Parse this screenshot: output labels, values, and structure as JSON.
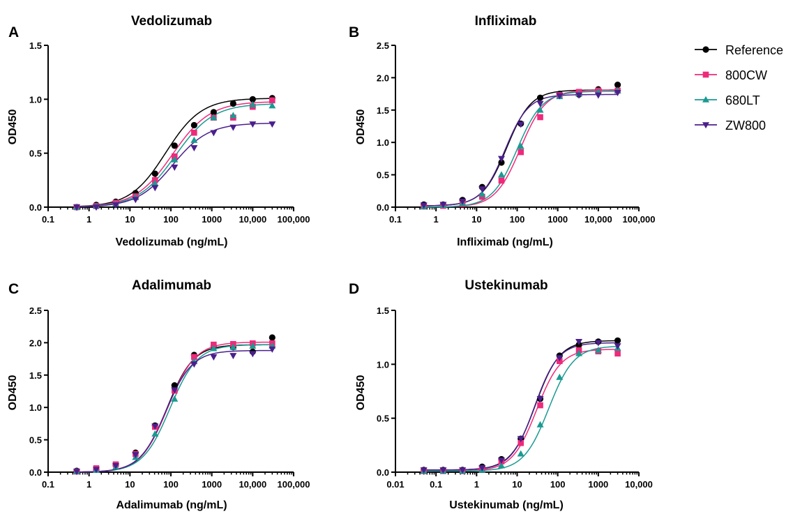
{
  "colors": {
    "Reference": "#000000",
    "800CW": "#ee2a7b",
    "680LT": "#1a9a92",
    "ZW800": "#4b1f8c"
  },
  "legend": {
    "placement": "right",
    "items": [
      {
        "name": "Reference",
        "marker": "circle"
      },
      {
        "name": "800CW",
        "marker": "square"
      },
      {
        "name": "680LT",
        "marker": "triangle-up"
      },
      {
        "name": "ZW800",
        "marker": "triangle-down"
      }
    ]
  },
  "chart_data": [
    {
      "panel": "A",
      "type": "scatter",
      "title": "Vedolizumab",
      "xlabel": "Vedolizumab (ng/mL)",
      "ylabel": "OD450",
      "xscale": "log",
      "xlim": [
        0.1,
        100000
      ],
      "ylim": [
        0,
        1.5
      ],
      "xticks": [
        0.1,
        1,
        10,
        100,
        1000,
        10000,
        100000
      ],
      "xtick_labels": [
        "0.1",
        "1",
        "10",
        "100",
        "1000",
        "10,000",
        "100,000"
      ],
      "yticks": [
        0,
        0.5,
        1.0,
        1.5
      ],
      "ytick_labels": [
        "0.0",
        "0.5",
        "1.0",
        "1.5"
      ],
      "grid": false,
      "x": [
        0.5,
        1.5,
        4.5,
        13.7,
        41,
        123,
        370,
        1111,
        3333,
        10000,
        30000
      ],
      "series": [
        {
          "name": "Reference",
          "values": [
            0.0,
            0.02,
            0.05,
            0.13,
            0.31,
            0.57,
            0.76,
            0.88,
            0.96,
            1.0,
            1.01
          ],
          "fit": {
            "bottom": 0.0,
            "top": 1.01,
            "ec50": 75,
            "hill": 1.0
          }
        },
        {
          "name": "800CW",
          "values": [
            0.0,
            0.01,
            0.04,
            0.1,
            0.25,
            0.47,
            0.69,
            0.83,
            0.83,
            0.93,
            0.99
          ],
          "fit": {
            "bottom": 0.0,
            "top": 0.98,
            "ec50": 110,
            "hill": 0.95
          }
        },
        {
          "name": "680LT",
          "values": [
            0.0,
            0.01,
            0.03,
            0.09,
            0.22,
            0.44,
            0.62,
            0.83,
            0.85,
            0.95,
            0.94
          ],
          "fit": {
            "bottom": 0.0,
            "top": 0.96,
            "ec50": 130,
            "hill": 0.95
          }
        },
        {
          "name": "ZW800",
          "values": [
            0.0,
            0.0,
            0.02,
            0.07,
            0.18,
            0.37,
            0.55,
            0.69,
            0.74,
            0.77,
            0.77
          ],
          "fit": {
            "bottom": 0.0,
            "top": 0.78,
            "ec50": 110,
            "hill": 1.0
          }
        }
      ]
    },
    {
      "panel": "B",
      "type": "scatter",
      "title": "Infliximab",
      "xlabel": "Infliximab (ng/mL)",
      "ylabel": "OD450",
      "xscale": "log",
      "xlim": [
        0.1,
        100000
      ],
      "ylim": [
        0,
        2.5
      ],
      "xticks": [
        0.1,
        1,
        10,
        100,
        1000,
        10000,
        100000
      ],
      "xtick_labels": [
        "0.1",
        "1",
        "10",
        "100",
        "1000",
        "10,000",
        "100,000"
      ],
      "yticks": [
        0,
        0.5,
        1.0,
        1.5,
        2.0,
        2.5
      ],
      "ytick_labels": [
        "0.0",
        "0.5",
        "1.0",
        "1.5",
        "2.0",
        "2.5"
      ],
      "grid": false,
      "x": [
        0.5,
        1.5,
        4.5,
        13.7,
        41,
        123,
        370,
        1111,
        3333,
        10000,
        30000
      ],
      "series": [
        {
          "name": "Reference",
          "values": [
            0.04,
            0.04,
            0.11,
            0.31,
            0.69,
            1.29,
            1.69,
            1.75,
            1.74,
            1.82,
            1.89
          ],
          "fit": {
            "bottom": 0.02,
            "top": 1.81,
            "ec50": 55,
            "hill": 1.45
          }
        },
        {
          "name": "800CW",
          "values": [
            0.01,
            0.02,
            0.05,
            0.16,
            0.41,
            0.85,
            1.39,
            1.73,
            1.78,
            1.8,
            1.8
          ],
          "fit": {
            "bottom": 0.0,
            "top": 1.81,
            "ec50": 120,
            "hill": 1.4
          }
        },
        {
          "name": "680LT",
          "values": [
            0.01,
            0.03,
            0.06,
            0.2,
            0.5,
            0.94,
            1.5,
            1.71,
            1.75,
            1.78,
            1.8
          ],
          "fit": {
            "bottom": 0.0,
            "top": 1.79,
            "ec50": 100,
            "hill": 1.4
          }
        },
        {
          "name": "ZW800",
          "values": [
            0.03,
            0.04,
            0.09,
            0.28,
            0.75,
            1.28,
            1.6,
            1.72,
            1.73,
            1.73,
            1.77
          ],
          "fit": {
            "bottom": 0.02,
            "top": 1.74,
            "ec50": 50,
            "hill": 1.5
          }
        }
      ]
    },
    {
      "panel": "C",
      "type": "scatter",
      "title": "Adalimumab",
      "xlabel": "Adalimumab (ng/mL)",
      "ylabel": "OD450",
      "xscale": "log",
      "xlim": [
        0.1,
        100000
      ],
      "ylim": [
        0,
        2.5
      ],
      "xticks": [
        0.1,
        1,
        10,
        100,
        1000,
        10000,
        100000
      ],
      "xtick_labels": [
        "0.1",
        "1",
        "10",
        "100",
        "1000",
        "10,000",
        "100,000"
      ],
      "yticks": [
        0,
        0.5,
        1.0,
        1.5,
        2.0,
        2.5
      ],
      "ytick_labels": [
        "0.0",
        "0.5",
        "1.0",
        "1.5",
        "2.0",
        "2.5"
      ],
      "grid": false,
      "x": [
        0.5,
        1.5,
        4.5,
        13.7,
        41,
        123,
        370,
        1111,
        3333,
        10000,
        30000
      ],
      "series": [
        {
          "name": "Reference",
          "values": [
            0.02,
            0.04,
            0.11,
            0.3,
            0.72,
            1.34,
            1.81,
            1.95,
            1.93,
            1.86,
            2.08
          ],
          "fit": {
            "bottom": 0.0,
            "top": 1.97,
            "ec50": 80,
            "hill": 1.35
          }
        },
        {
          "name": "800CW",
          "values": [
            0.01,
            0.06,
            0.12,
            0.28,
            0.7,
            1.26,
            1.78,
            1.97,
            1.98,
            1.99,
            1.99
          ],
          "fit": {
            "bottom": 0.0,
            "top": 2.01,
            "ec50": 85,
            "hill": 1.3
          }
        },
        {
          "name": "680LT",
          "values": [
            0.01,
            0.03,
            0.08,
            0.23,
            0.59,
            1.13,
            1.71,
            1.91,
            1.93,
            1.95,
            1.95
          ],
          "fit": {
            "bottom": 0.0,
            "top": 1.97,
            "ec50": 95,
            "hill": 1.3
          }
        },
        {
          "name": "ZW800",
          "values": [
            0.01,
            0.04,
            0.1,
            0.27,
            0.71,
            1.27,
            1.67,
            1.78,
            1.8,
            1.83,
            1.9
          ],
          "fit": {
            "bottom": 0.0,
            "top": 1.88,
            "ec50": 75,
            "hill": 1.35
          }
        }
      ]
    },
    {
      "panel": "D",
      "type": "scatter",
      "title": "Ustekinumab",
      "xlabel": "Ustekinumab (ng/mL)",
      "ylabel": "OD450",
      "xscale": "log",
      "xlim": [
        0.01,
        10000
      ],
      "ylim": [
        0,
        1.5
      ],
      "xticks": [
        0.01,
        0.1,
        1,
        10,
        100,
        1000,
        10000
      ],
      "xtick_labels": [
        "0.01",
        "0.1",
        "1",
        "10",
        "100",
        "1000",
        "10,000"
      ],
      "yticks": [
        0,
        0.5,
        1.0,
        1.5
      ],
      "ytick_labels": [
        "0.0",
        "0.5",
        "1.0",
        "1.5"
      ],
      "grid": false,
      "x": [
        0.05,
        0.15,
        0.45,
        1.37,
        4.1,
        12.3,
        37,
        111,
        333,
        1000,
        3000
      ],
      "series": [
        {
          "name": "Reference",
          "values": [
            0.02,
            0.02,
            0.02,
            0.05,
            0.12,
            0.31,
            0.68,
            1.08,
            1.18,
            1.21,
            1.22
          ],
          "fit": {
            "bottom": 0.02,
            "top": 1.22,
            "ec50": 28,
            "hill": 1.45
          }
        },
        {
          "name": "800CW",
          "values": [
            0.01,
            0.01,
            0.01,
            0.03,
            0.1,
            0.27,
            0.62,
            1.03,
            1.13,
            1.12,
            1.1
          ],
          "fit": {
            "bottom": 0.01,
            "top": 1.14,
            "ec50": 30,
            "hill": 1.45
          }
        },
        {
          "name": "680LT",
          "values": [
            0.01,
            0.01,
            0.01,
            0.02,
            0.06,
            0.17,
            0.44,
            0.88,
            1.1,
            1.13,
            1.15
          ],
          "fit": {
            "bottom": 0.01,
            "top": 1.17,
            "ec50": 60,
            "hill": 1.4
          }
        },
        {
          "name": "ZW800",
          "values": [
            0.02,
            0.02,
            0.02,
            0.04,
            0.11,
            0.31,
            0.68,
            1.06,
            1.21,
            1.2,
            1.17
          ],
          "fit": {
            "bottom": 0.02,
            "top": 1.2,
            "ec50": 27,
            "hill": 1.5
          }
        }
      ]
    }
  ]
}
